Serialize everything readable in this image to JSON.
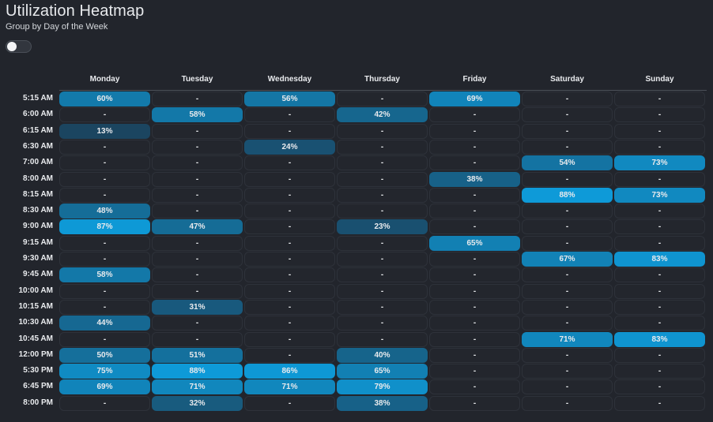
{
  "title": "Utilization Heatmap",
  "subtitle": "Group by Day of the Week",
  "toggle": {
    "on": false
  },
  "chart_data": {
    "type": "heatmap",
    "days": [
      "Monday",
      "Tuesday",
      "Wednesday",
      "Thursday",
      "Friday",
      "Saturday",
      "Sunday"
    ],
    "times": [
      "5:15 AM",
      "6:00 AM",
      "6:15 AM",
      "6:30 AM",
      "7:00 AM",
      "8:00 AM",
      "8:15 AM",
      "8:30 AM",
      "9:00 AM",
      "9:15 AM",
      "9:30 AM",
      "9:45 AM",
      "10:00 AM",
      "10:15 AM",
      "10:30 AM",
      "10:45 AM",
      "12:00 PM",
      "5:30 PM",
      "6:45 PM",
      "8:00 PM"
    ],
    "values": [
      [
        60,
        null,
        56,
        null,
        69,
        null,
        null
      ],
      [
        null,
        58,
        null,
        42,
        null,
        null,
        null
      ],
      [
        13,
        null,
        null,
        null,
        null,
        null,
        null
      ],
      [
        null,
        null,
        24,
        null,
        null,
        null,
        null
      ],
      [
        null,
        null,
        null,
        null,
        null,
        54,
        73
      ],
      [
        null,
        null,
        null,
        null,
        38,
        null,
        null
      ],
      [
        null,
        null,
        null,
        null,
        null,
        88,
        73
      ],
      [
        48,
        null,
        null,
        null,
        null,
        null,
        null
      ],
      [
        87,
        47,
        null,
        23,
        null,
        null,
        null
      ],
      [
        null,
        null,
        null,
        null,
        65,
        null,
        null
      ],
      [
        null,
        null,
        null,
        null,
        null,
        67,
        83
      ],
      [
        58,
        null,
        null,
        null,
        null,
        null,
        null
      ],
      [
        null,
        null,
        null,
        null,
        null,
        null,
        null
      ],
      [
        null,
        31,
        null,
        null,
        null,
        null,
        null
      ],
      [
        44,
        null,
        null,
        null,
        null,
        null,
        null
      ],
      [
        null,
        null,
        null,
        null,
        null,
        71,
        83
      ],
      [
        50,
        51,
        null,
        40,
        null,
        null,
        null
      ],
      [
        75,
        88,
        86,
        65,
        null,
        null,
        null
      ],
      [
        69,
        71,
        71,
        79,
        null,
        null,
        null
      ],
      [
        null,
        32,
        null,
        38,
        null,
        null,
        null
      ]
    ],
    "empty_label": "-",
    "value_suffix": "%",
    "colors": {
      "low": "#1b4560",
      "high": "#0e9ad8",
      "empty_bg": "#23262d",
      "empty_border": "#2e323a"
    }
  }
}
